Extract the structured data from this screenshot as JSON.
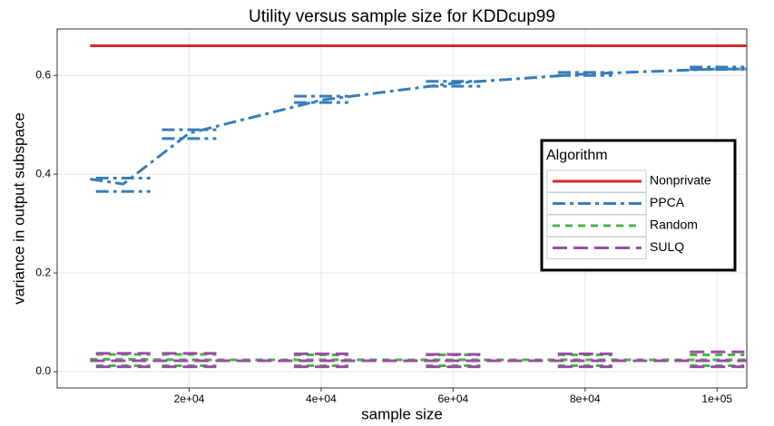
{
  "chart_data": {
    "type": "line",
    "title": "Utility versus sample size for KDDcup99",
    "x_label": "sample size",
    "y_label": "variance in output subspace",
    "x": [
      5000,
      10000,
      20000,
      40000,
      60000,
      80000,
      100000,
      104500
    ],
    "xlim": [
      0,
      104500
    ],
    "xticks": [
      {
        "value": 20000,
        "label": "2e+04"
      },
      {
        "value": 40000,
        "label": "4e+04"
      },
      {
        "value": 60000,
        "label": "6e+04"
      },
      {
        "value": 80000,
        "label": "8e+04"
      },
      {
        "value": 100000,
        "label": "1e+05"
      }
    ],
    "ylim": [
      -0.033,
      0.694
    ],
    "yticks": [
      {
        "value": 0,
        "label": "0.0"
      },
      0.2,
      0.4,
      0.6
    ],
    "grid": true,
    "legend_title": "Algorithm",
    "legend_position": "right",
    "series": [
      {
        "name": "Nonprivate",
        "color": "#d7282a",
        "linetype": "solid",
        "values": [
          0.66,
          0.66,
          0.66,
          0.66,
          0.66,
          0.66,
          0.66,
          0.66
        ]
      },
      {
        "name": "PPCA",
        "color": "#377eb8",
        "linetype": "dotdash",
        "values": [
          0.39,
          0.38,
          0.483,
          0.55,
          0.584,
          0.603,
          0.613,
          0.613
        ],
        "upper": [
          null,
          0.392,
          0.49,
          0.558,
          0.588,
          0.606,
          0.617,
          null
        ],
        "lower": [
          null,
          0.365,
          0.472,
          0.545,
          0.578,
          0.6,
          0.612,
          null
        ]
      },
      {
        "name": "Random",
        "color": "#4daf4a",
        "linetype": "dashed",
        "values": [
          0.025,
          0.025,
          0.024,
          0.024,
          0.024,
          0.024,
          0.024,
          0.024
        ],
        "upper": [
          null,
          0.035,
          0.035,
          0.034,
          0.034,
          0.034,
          0.034,
          null
        ],
        "lower": [
          null,
          0.012,
          0.012,
          0.012,
          0.012,
          0.012,
          0.012,
          null
        ]
      },
      {
        "name": "SULQ",
        "color": "#984ea3",
        "linetype": "longdash",
        "values": [
          0.022,
          0.022,
          0.022,
          0.022,
          0.022,
          0.022,
          0.022,
          0.022
        ],
        "upper": [
          null,
          0.037,
          0.037,
          0.036,
          0.035,
          0.036,
          0.04,
          null
        ],
        "lower": [
          null,
          0.01,
          0.01,
          0.01,
          0.01,
          0.01,
          0.01,
          null
        ]
      }
    ]
  }
}
